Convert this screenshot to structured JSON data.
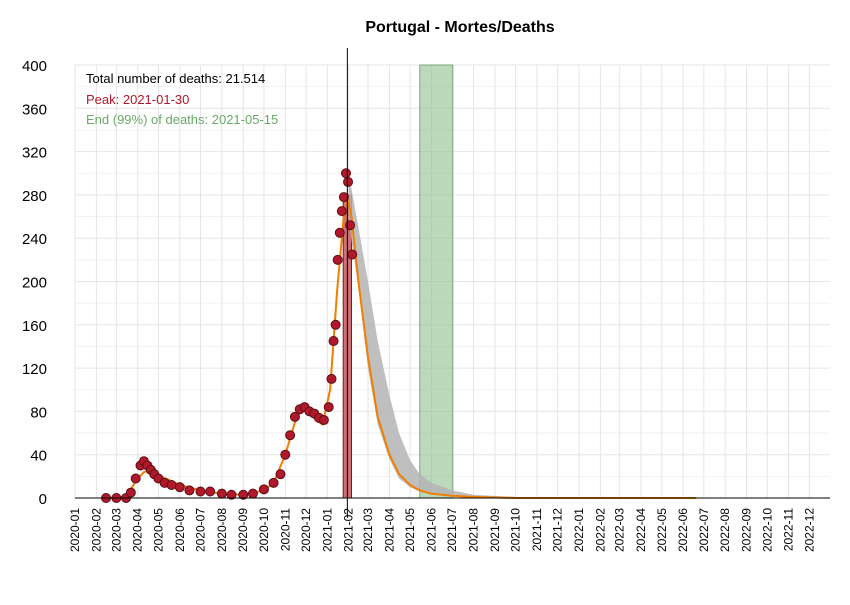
{
  "chart_data": {
    "type": "scatter",
    "title": "Portugal - Mortes/Deaths",
    "xlabel": "",
    "ylabel": "",
    "ylim": [
      0,
      400
    ],
    "yticks": [
      0,
      40,
      80,
      120,
      160,
      200,
      240,
      280,
      320,
      360,
      400
    ],
    "xlim": [
      "2020-01-01",
      "2022-12-31"
    ],
    "xtick_labels": [
      "2020-01",
      "2020-02",
      "2020-03",
      "2020-04",
      "2020-05",
      "2020-06",
      "2020-07",
      "2020-08",
      "2020-09",
      "2020-10",
      "2020-11",
      "2020-12",
      "2021-01",
      "2021-02",
      "2021-03",
      "2021-04",
      "2021-05",
      "2021-06",
      "2021-07",
      "2021-08",
      "2021-09",
      "2021-10",
      "2021-11",
      "2021-12",
      "2022-01",
      "2022-02",
      "2022-03",
      "2022-04",
      "2022-05",
      "2022-06",
      "2022-07",
      "2022-08",
      "2022-09",
      "2022-10",
      "2022-11",
      "2022-12"
    ],
    "grid": true,
    "annotations": {
      "total": "Total number of deaths: 21.514",
      "peak": "Peak: 2021-01-30",
      "end": "End (99%) of deaths: 2021-05-15"
    },
    "peak_date": "2021-01-30",
    "peak_band": [
      "2021-01-24",
      "2021-02-05"
    ],
    "end_band": [
      "2021-05-15",
      "2021-07-02"
    ],
    "observed_points": [
      [
        "2020-02-15",
        0
      ],
      [
        "2020-03-01",
        0
      ],
      [
        "2020-03-15",
        0
      ],
      [
        "2020-03-22",
        5
      ],
      [
        "2020-03-29",
        18
      ],
      [
        "2020-04-05",
        30
      ],
      [
        "2020-04-10",
        34
      ],
      [
        "2020-04-15",
        30
      ],
      [
        "2020-04-20",
        26
      ],
      [
        "2020-04-25",
        22
      ],
      [
        "2020-05-01",
        18
      ],
      [
        "2020-05-10",
        14
      ],
      [
        "2020-05-20",
        12
      ],
      [
        "2020-06-01",
        10
      ],
      [
        "2020-06-15",
        7
      ],
      [
        "2020-07-01",
        6
      ],
      [
        "2020-07-15",
        6
      ],
      [
        "2020-08-01",
        4
      ],
      [
        "2020-08-15",
        3
      ],
      [
        "2020-09-01",
        3
      ],
      [
        "2020-09-15",
        4
      ],
      [
        "2020-10-01",
        8
      ],
      [
        "2020-10-15",
        14
      ],
      [
        "2020-10-25",
        22
      ],
      [
        "2020-11-01",
        40
      ],
      [
        "2020-11-08",
        58
      ],
      [
        "2020-11-15",
        75
      ],
      [
        "2020-11-22",
        82
      ],
      [
        "2020-11-29",
        84
      ],
      [
        "2020-12-06",
        80
      ],
      [
        "2020-12-13",
        78
      ],
      [
        "2020-12-20",
        74
      ],
      [
        "2020-12-27",
        72
      ],
      [
        "2021-01-03",
        84
      ],
      [
        "2021-01-07",
        110
      ],
      [
        "2021-01-10",
        145
      ],
      [
        "2021-01-13",
        160
      ],
      [
        "2021-01-16",
        220
      ],
      [
        "2021-01-19",
        245
      ],
      [
        "2021-01-22",
        265
      ],
      [
        "2021-01-25",
        278
      ],
      [
        "2021-01-28",
        300
      ],
      [
        "2021-01-31",
        292
      ],
      [
        "2021-02-03",
        252
      ],
      [
        "2021-02-06",
        225
      ]
    ],
    "model_curve": [
      [
        "2020-02-15",
        0
      ],
      [
        "2020-03-15",
        1
      ],
      [
        "2020-04-01",
        18
      ],
      [
        "2020-04-10",
        24
      ],
      [
        "2020-04-20",
        25
      ],
      [
        "2020-05-01",
        21
      ],
      [
        "2020-05-15",
        17
      ],
      [
        "2020-06-01",
        12
      ],
      [
        "2020-07-01",
        7
      ],
      [
        "2020-08-01",
        4
      ],
      [
        "2020-09-01",
        3
      ],
      [
        "2020-10-01",
        7
      ],
      [
        "2020-10-15",
        14
      ],
      [
        "2020-11-01",
        40
      ],
      [
        "2020-11-15",
        70
      ],
      [
        "2020-11-25",
        84
      ],
      [
        "2020-12-05",
        82
      ],
      [
        "2020-12-15",
        72
      ],
      [
        "2020-12-25",
        68
      ],
      [
        "2021-01-05",
        100
      ],
      [
        "2021-01-15",
        190
      ],
      [
        "2021-01-25",
        262
      ],
      [
        "2021-01-30",
        278
      ],
      [
        "2021-02-05",
        260
      ],
      [
        "2021-02-15",
        200
      ],
      [
        "2021-03-01",
        130
      ],
      [
        "2021-03-15",
        75
      ],
      [
        "2021-04-01",
        40
      ],
      [
        "2021-04-15",
        22
      ],
      [
        "2021-05-01",
        12
      ],
      [
        "2021-05-15",
        7
      ],
      [
        "2021-06-01",
        4
      ],
      [
        "2021-07-01",
        2
      ],
      [
        "2021-08-01",
        1
      ],
      [
        "2021-10-01",
        0
      ],
      [
        "2022-06-20",
        0
      ]
    ],
    "confidence_band": [
      [
        "2021-02-01",
        255,
        300
      ],
      [
        "2021-02-15",
        195,
        250
      ],
      [
        "2021-03-01",
        120,
        200
      ],
      [
        "2021-03-15",
        68,
        145
      ],
      [
        "2021-04-01",
        36,
        95
      ],
      [
        "2021-04-15",
        18,
        60
      ],
      [
        "2021-05-01",
        10,
        35
      ],
      [
        "2021-05-15",
        6,
        22
      ],
      [
        "2021-06-01",
        3,
        14
      ],
      [
        "2021-07-01",
        1,
        7
      ],
      [
        "2021-08-01",
        0,
        3
      ],
      [
        "2021-10-01",
        0,
        1
      ]
    ],
    "colors": {
      "points": "#b2182b",
      "point_stroke": "#5a0f14",
      "curve": "#f07f00",
      "confidence": "#b4b4b4",
      "end_band": "#8fbf8f",
      "peak_band": "#c0404a",
      "peak_text": "#b2182b",
      "end_text": "#6aaa6a"
    }
  }
}
